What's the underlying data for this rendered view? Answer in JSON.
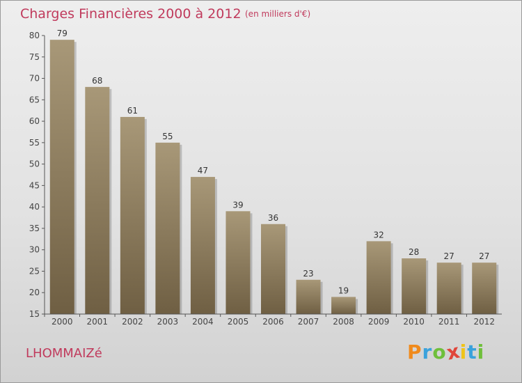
{
  "header": {
    "title": "Charges Financières 2000 à 2012",
    "subtitle": "(en milliers d'€)"
  },
  "footer": {
    "commune": "LHOMMAIZé",
    "brand": [
      "P",
      "r",
      "o",
      "x",
      "i",
      "t",
      "i"
    ],
    "brand_colors": [
      "#f08a1c",
      "#3aa2dc",
      "#6fbf3b",
      "#e0453a",
      "#f0c419",
      "#3aa2dc",
      "#6fbf3b"
    ]
  },
  "colors": {
    "bar_light": "#a89878",
    "bar_dark": "#6f5f43",
    "axis": "#555555",
    "title": "#c03a5c"
  },
  "chart_data": {
    "type": "bar",
    "title": "Charges Financières 2000 à 2012",
    "subtitle": "(en milliers d'€)",
    "categories": [
      "2000",
      "2001",
      "2002",
      "2003",
      "2004",
      "2005",
      "2006",
      "2007",
      "2008",
      "2009",
      "2010",
      "2011",
      "2012"
    ],
    "values": [
      79,
      68,
      61,
      55,
      47,
      39,
      36,
      23,
      19,
      32,
      28,
      27,
      27
    ],
    "ylim": [
      15,
      80
    ],
    "yticks": [
      15,
      20,
      25,
      30,
      35,
      40,
      45,
      50,
      55,
      60,
      65,
      70,
      75,
      80
    ],
    "grid": false,
    "legend": "none"
  }
}
